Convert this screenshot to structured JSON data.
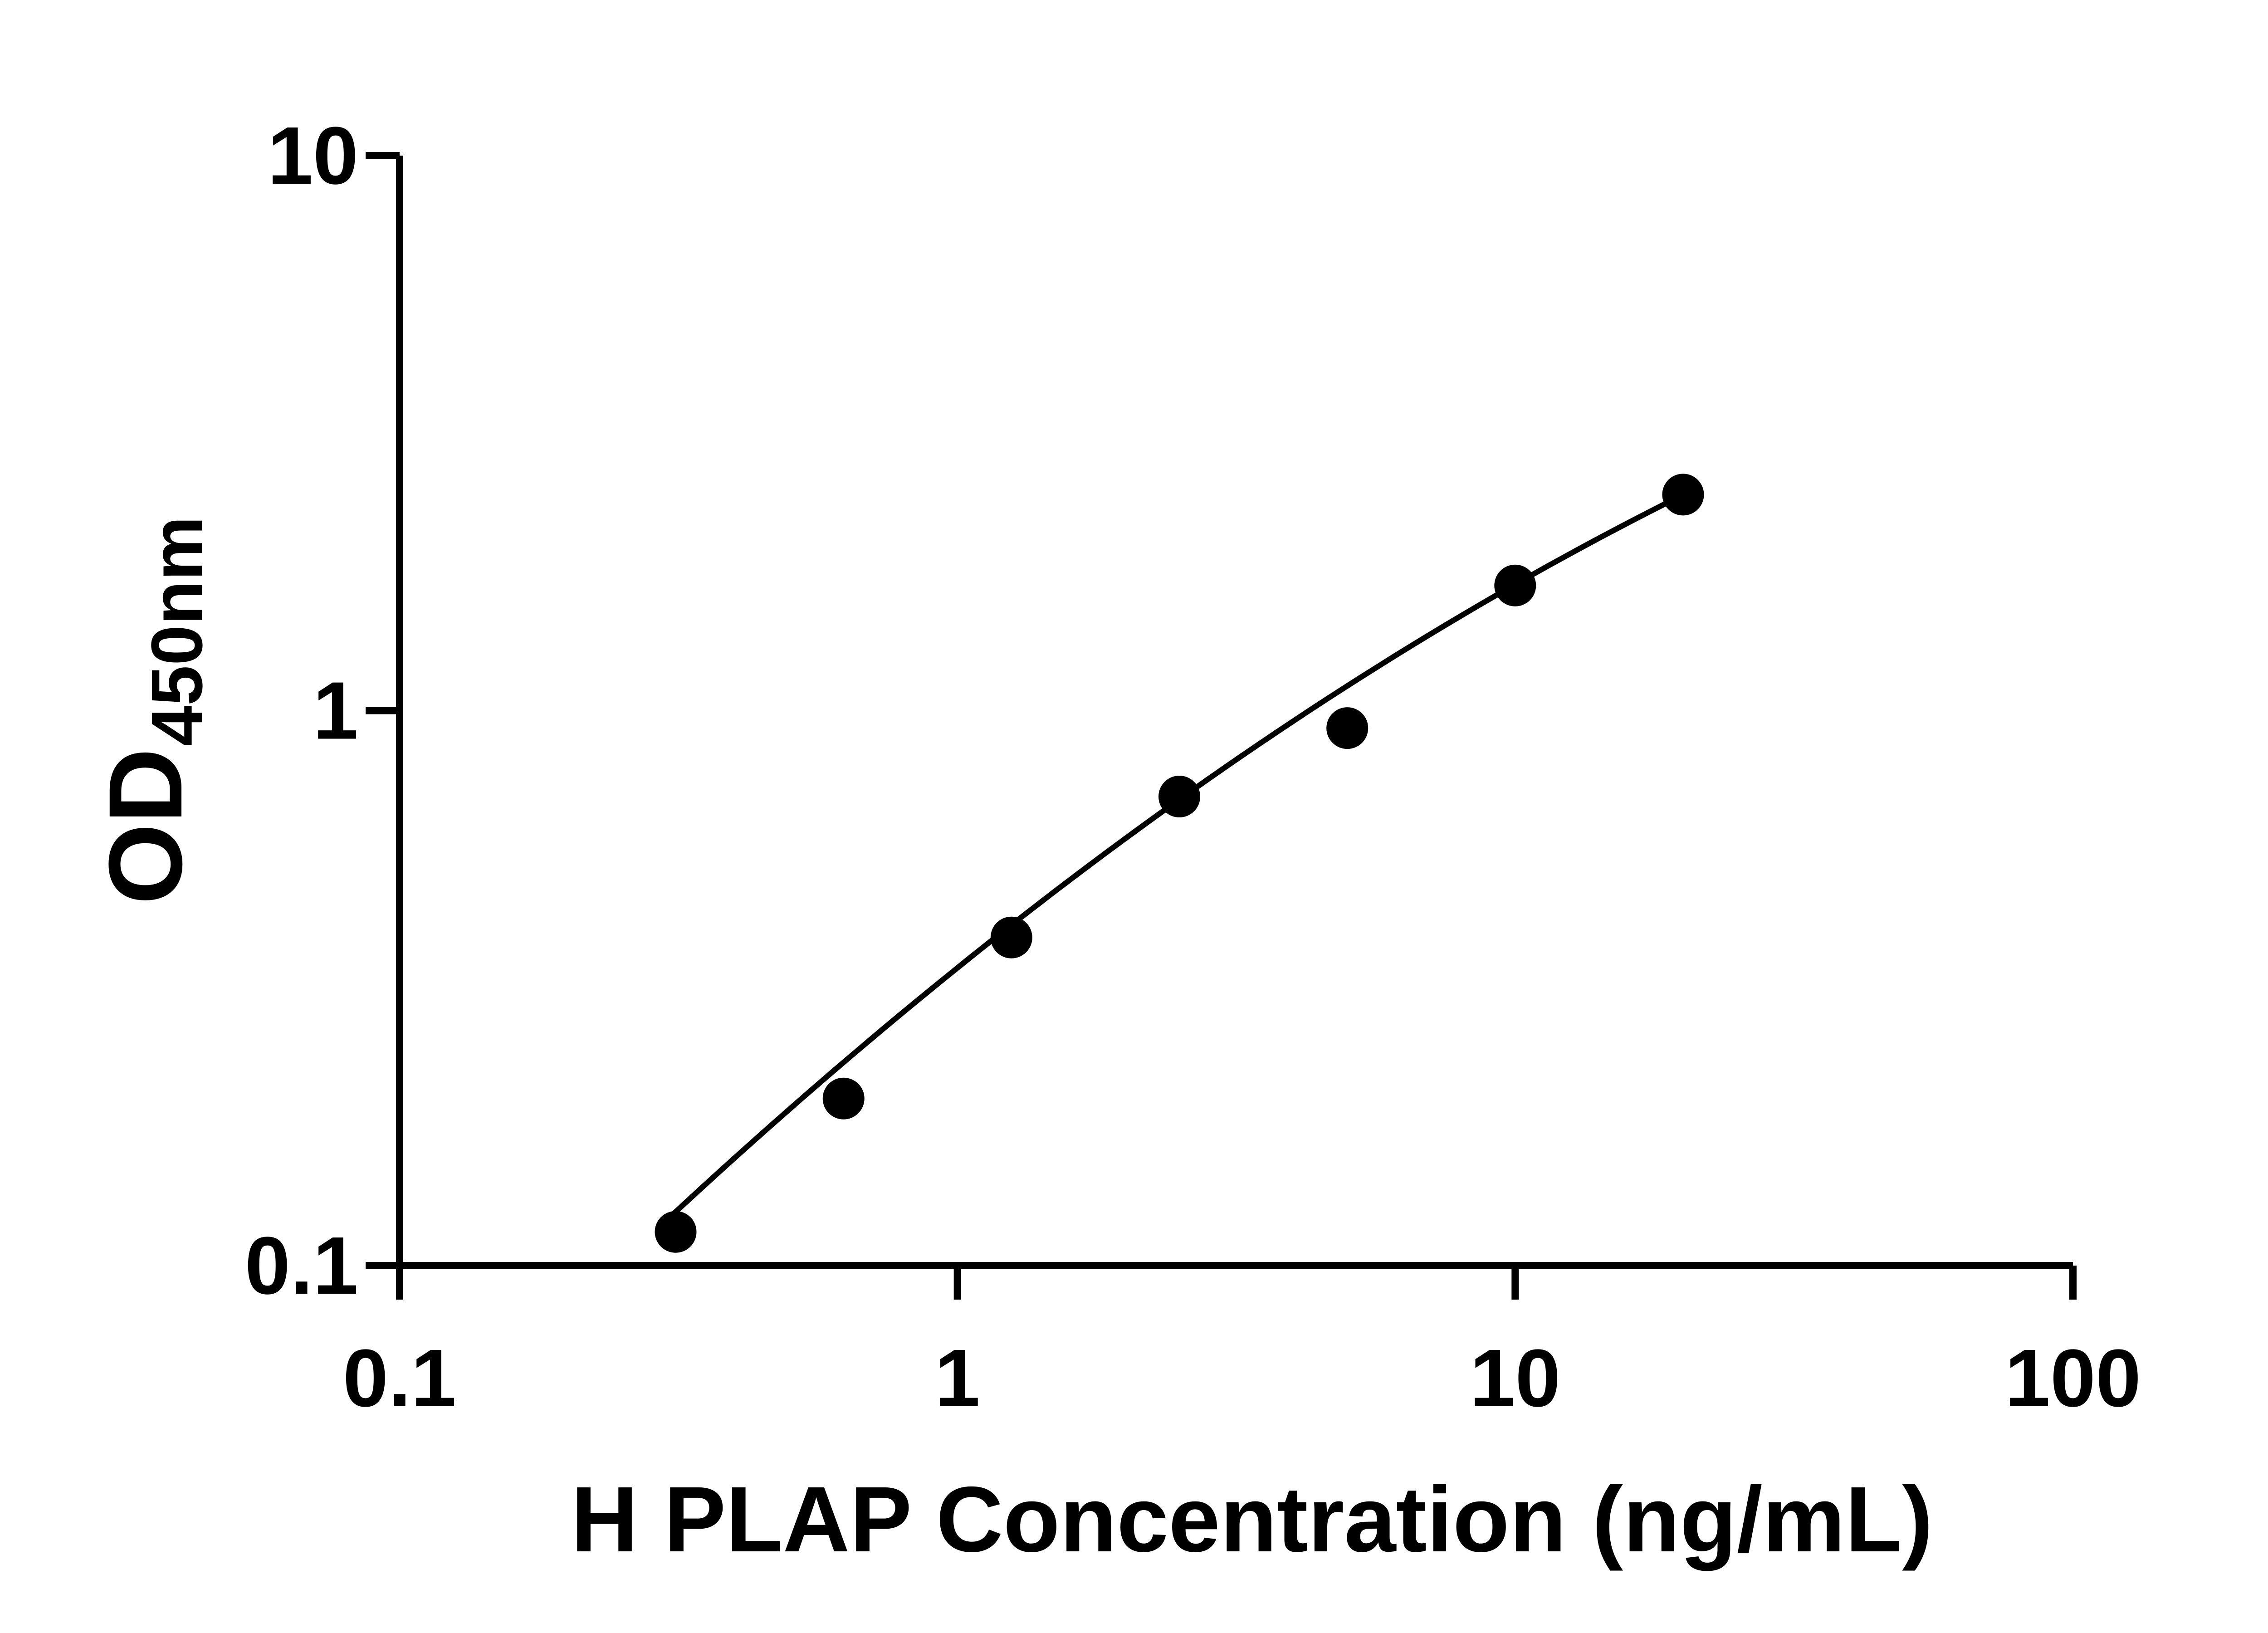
{
  "chart_data": {
    "type": "scatter",
    "xlabel": "H PLAP Concentration (ng/mL)",
    "ylabel": "OD",
    "ylabel_subscript": "450nm",
    "x_scale": "log10",
    "y_scale": "log10",
    "xlim": [
      0.1,
      100
    ],
    "ylim": [
      0.1,
      10
    ],
    "grid": false,
    "legend": false,
    "colors": {
      "axis": "#000000",
      "marker": "#000000",
      "curve": "#000000",
      "background": "#ffffff"
    },
    "x_ticks": [
      {
        "value": 0.1,
        "label": "0.1"
      },
      {
        "value": 1,
        "label": "1"
      },
      {
        "value": 10,
        "label": "10"
      },
      {
        "value": 100,
        "label": "100"
      }
    ],
    "y_ticks": [
      {
        "value": 0.1,
        "label": "0.1"
      },
      {
        "value": 1,
        "label": "1"
      },
      {
        "value": 10,
        "label": "10"
      }
    ],
    "points": [
      {
        "x": 0.3125,
        "y": 0.115
      },
      {
        "x": 0.625,
        "y": 0.2
      },
      {
        "x": 1.25,
        "y": 0.39
      },
      {
        "x": 2.5,
        "y": 0.7
      },
      {
        "x": 5,
        "y": 0.93
      },
      {
        "x": 10,
        "y": 1.68
      },
      {
        "x": 20,
        "y": 2.45
      }
    ],
    "trend_curve": {
      "model": "log10(y) = a + b*log10(x) + c*log10(x)^2",
      "coefficients": {
        "a": -0.4636,
        "b": 0.81,
        "c": -0.119
      },
      "x_range": [
        0.3,
        20
      ]
    }
  }
}
